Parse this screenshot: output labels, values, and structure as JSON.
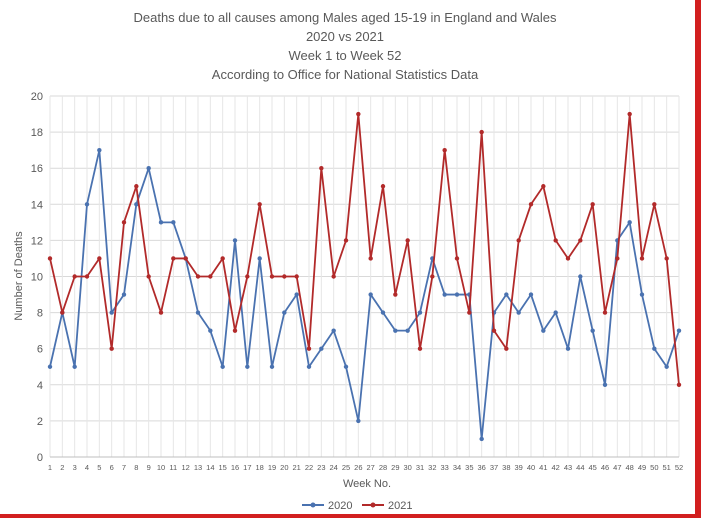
{
  "chart_data": {
    "type": "line",
    "title_lines": [
      "Deaths due to all causes among Males aged 15-19 in England and Wales",
      "2020 vs 2021",
      "Week 1 to Week 52",
      "According to Office for National Statistics Data"
    ],
    "xlabel": "Week No.",
    "ylabel": "Number of Deaths",
    "ylim": [
      0,
      20
    ],
    "yticks": [
      0,
      2,
      4,
      6,
      8,
      10,
      12,
      14,
      16,
      18,
      20
    ],
    "grid": true,
    "legend_position": "bottom",
    "x": [
      1,
      2,
      3,
      4,
      5,
      6,
      7,
      8,
      9,
      10,
      11,
      12,
      13,
      14,
      15,
      16,
      17,
      18,
      19,
      20,
      21,
      22,
      23,
      24,
      25,
      26,
      27,
      28,
      29,
      30,
      31,
      32,
      33,
      34,
      35,
      36,
      37,
      38,
      39,
      40,
      41,
      42,
      43,
      44,
      45,
      46,
      47,
      48,
      49,
      50,
      51,
      52
    ],
    "series": [
      {
        "name": "2020",
        "color": "#4a72b0",
        "values": [
          5,
          8,
          5,
          14,
          17,
          8,
          9,
          14,
          16,
          13,
          13,
          11,
          8,
          7,
          5,
          12,
          5,
          11,
          5,
          8,
          9,
          5,
          6,
          7,
          5,
          2,
          9,
          8,
          7,
          7,
          8,
          11,
          9,
          9,
          9,
          1,
          8,
          9,
          8,
          9,
          7,
          8,
          6,
          10,
          7,
          4,
          12,
          13,
          9,
          6,
          5,
          7
        ]
      },
      {
        "name": "2021",
        "color": "#b22a2a",
        "values": [
          11,
          8,
          10,
          10,
          11,
          6,
          13,
          15,
          10,
          8,
          11,
          11,
          10,
          10,
          11,
          7,
          10,
          14,
          10,
          10,
          10,
          6,
          16,
          10,
          12,
          19,
          11,
          15,
          9,
          12,
          6,
          10,
          17,
          11,
          8,
          18,
          7,
          6,
          12,
          14,
          15,
          12,
          11,
          12,
          14,
          8,
          11,
          19,
          11,
          14,
          11,
          4
        ]
      }
    ]
  }
}
